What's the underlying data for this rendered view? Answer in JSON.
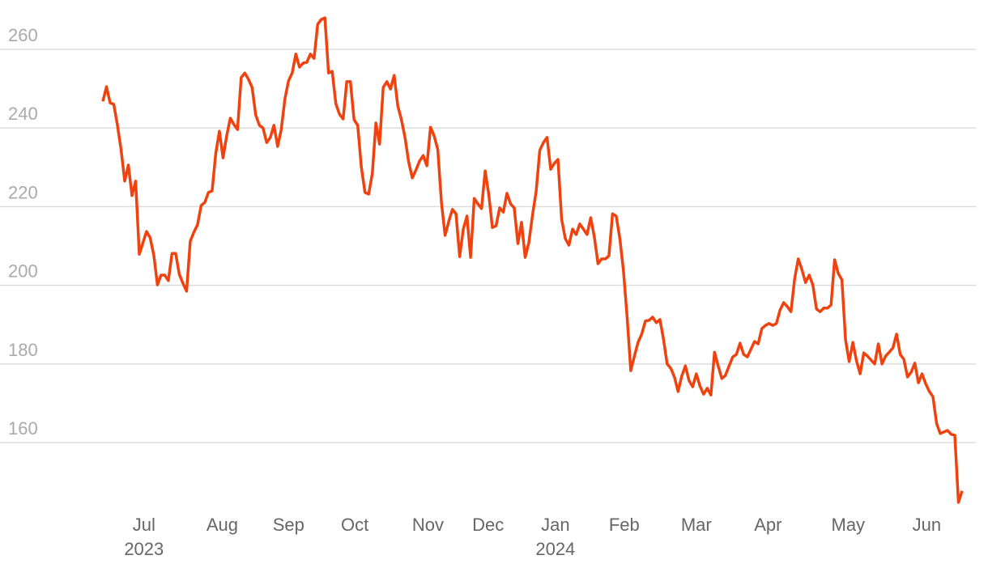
{
  "chart_data": {
    "type": "line",
    "values": [
      246.8,
      250.5,
      246.4,
      246.0,
      240.7,
      234.5,
      226.5,
      230.6,
      222.8,
      226.5,
      207.9,
      210.8,
      213.7,
      212.1,
      207.7,
      200.1,
      202.6,
      202.6,
      201.2,
      208.1,
      208.1,
      202.8,
      200.5,
      198.5,
      211.2,
      213.5,
      215.4,
      220.3,
      221.1,
      223.6,
      224.0,
      233.5,
      239.2,
      232.4,
      238.0,
      242.5,
      240.9,
      239.6,
      252.8,
      254.0,
      252.4,
      250.3,
      243.3,
      240.7,
      240.0,
      236.3,
      237.6,
      240.7,
      235.3,
      239.6,
      247.4,
      252.0,
      254.0,
      258.8,
      255.5,
      256.5,
      256.7,
      258.8,
      257.7,
      266.4,
      267.6,
      268.0,
      254.0,
      254.4,
      246.2,
      243.5,
      242.3,
      251.8,
      251.8,
      242.1,
      240.7,
      230.0,
      223.6,
      223.2,
      228.3,
      241.3,
      235.9,
      250.3,
      251.8,
      249.9,
      253.4,
      245.6,
      242.1,
      237.6,
      231.4,
      227.3,
      229.3,
      231.6,
      233.0,
      230.4,
      240.2,
      238.0,
      234.5,
      221.1,
      212.7,
      216.2,
      219.3,
      218.2,
      207.3,
      214.3,
      217.6,
      207.1,
      222.1,
      220.7,
      219.5,
      229.1,
      223.0,
      214.7,
      215.1,
      219.7,
      218.6,
      223.4,
      220.7,
      219.7,
      210.6,
      216.0,
      207.1,
      210.8,
      217.8,
      223.8,
      234.3,
      236.3,
      237.6,
      229.5,
      231.0,
      232.0,
      216.8,
      211.9,
      210.2,
      214.3,
      212.9,
      215.6,
      214.3,
      212.9,
      217.2,
      212.3,
      205.5,
      206.7,
      206.7,
      207.5,
      218.2,
      217.6,
      211.9,
      203.6,
      191.9,
      178.3,
      182.0,
      185.5,
      187.6,
      190.9,
      191.1,
      191.9,
      190.5,
      191.3,
      186.3,
      180.0,
      178.9,
      176.7,
      173.0,
      176.9,
      179.5,
      175.8,
      174.2,
      177.5,
      174.4,
      172.3,
      173.8,
      172.1,
      183.0,
      179.5,
      176.3,
      177.1,
      179.5,
      181.8,
      182.4,
      185.3,
      182.4,
      181.8,
      183.7,
      185.7,
      185.1,
      189.0,
      189.8,
      190.3,
      189.8,
      190.3,
      193.7,
      195.6,
      194.6,
      193.3,
      201.6,
      206.7,
      204.0,
      200.7,
      202.6,
      200.1,
      194.0,
      193.3,
      194.2,
      194.2,
      195.0,
      206.5,
      203.0,
      201.4,
      186.1,
      180.6,
      185.5,
      180.8,
      177.5,
      182.8,
      182.0,
      181.0,
      180.0,
      185.1,
      180.0,
      182.0,
      183.0,
      184.1,
      187.6,
      182.4,
      181.2,
      176.7,
      177.9,
      180.2,
      175.2,
      177.5,
      175.0,
      173.0,
      171.7,
      164.9,
      162.3,
      162.7,
      163.1,
      162.1,
      161.9,
      144.8,
      147.7
    ],
    "color": "#f0420e",
    "xlim": [
      0,
      236
    ],
    "xticks": [
      {
        "value": 11.3,
        "label": "Jul",
        "year": "2023"
      },
      {
        "value": 32.8,
        "label": "Aug"
      },
      {
        "value": 51,
        "label": "Sep"
      },
      {
        "value": 69.2,
        "label": "Oct"
      },
      {
        "value": 89.3,
        "label": "Nov"
      },
      {
        "value": 105.8,
        "label": "Dec"
      },
      {
        "value": 124.3,
        "label": "Jan",
        "year": "2024"
      },
      {
        "value": 143.2,
        "label": "Feb"
      },
      {
        "value": 163,
        "label": "Mar"
      },
      {
        "value": 182.7,
        "label": "Apr"
      },
      {
        "value": 204.7,
        "label": "May"
      },
      {
        "value": 226.3,
        "label": "Jun"
      }
    ],
    "ylim": [
      142,
      270
    ],
    "yticks": [
      160,
      180,
      200,
      220,
      240,
      260
    ],
    "grid": true
  }
}
